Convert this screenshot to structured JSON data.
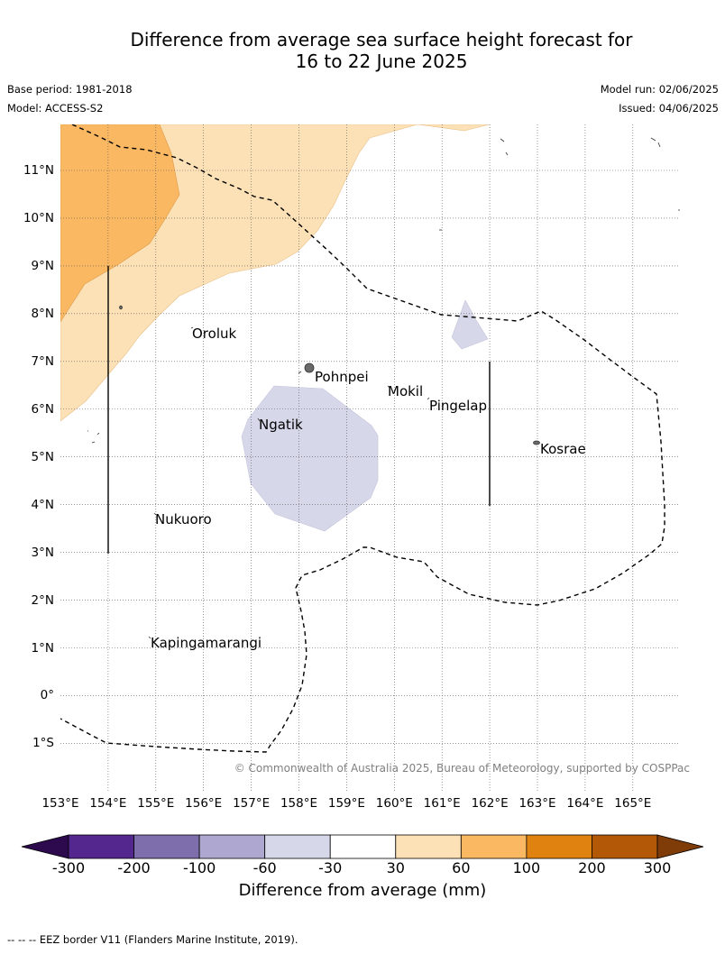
{
  "header": {
    "title_line1": "Difference from average sea surface height forecast for",
    "title_line2": "16 to 22 June 2025",
    "base_period": "Base period: 1981-2018",
    "model": "Model: ACCESS-S2",
    "model_run": "Model run: 02/06/2025",
    "issued": "Issued: 04/06/2025"
  },
  "map": {
    "copyright": "© Commonwealth of Australia 2025, Bureau of Meteorology, supported by COSPPac",
    "lon_labels": [
      "153°E",
      "154°E",
      "155°E",
      "156°E",
      "157°E",
      "158°E",
      "159°E",
      "160°E",
      "161°E",
      "162°E",
      "163°E",
      "164°E",
      "165°E"
    ],
    "lat_labels": [
      "11°N",
      "10°N",
      "9°N",
      "8°N",
      "7°N",
      "6°N",
      "5°N",
      "4°N",
      "3°N",
      "2°N",
      "1°N",
      "0°",
      "1°S"
    ],
    "places": [
      {
        "name": "Oroluk"
      },
      {
        "name": "Pohnpei"
      },
      {
        "name": "Mokil"
      },
      {
        "name": "Pingelap"
      },
      {
        "name": "Ngatik"
      },
      {
        "name": "Kosrae"
      },
      {
        "name": "Nukuoro"
      },
      {
        "name": "Kapingamarangi"
      }
    ],
    "colors": {
      "pos_30_60": "#fde1b6",
      "pos_60_100": "#fbb862",
      "neg_60_30": "#d7d7ea",
      "coast": "#505050"
    }
  },
  "legend": {
    "ticks": [
      "-300",
      "-200",
      "-100",
      "-60",
      "-30",
      "30",
      "60",
      "100",
      "200",
      "300"
    ],
    "title": "Difference from average (mm)",
    "colors": [
      "#2d0a4e",
      "#54278f",
      "#7f6eac",
      "#aea8d1",
      "#d7d7ea",
      "#ffffff",
      "#fde1b6",
      "#fbb862",
      "#e0820f",
      "#b35806",
      "#7f3b08"
    ]
  },
  "footnote": "--  --  -- EEZ border V11 (Flanders Marine Institute, 2019)."
}
